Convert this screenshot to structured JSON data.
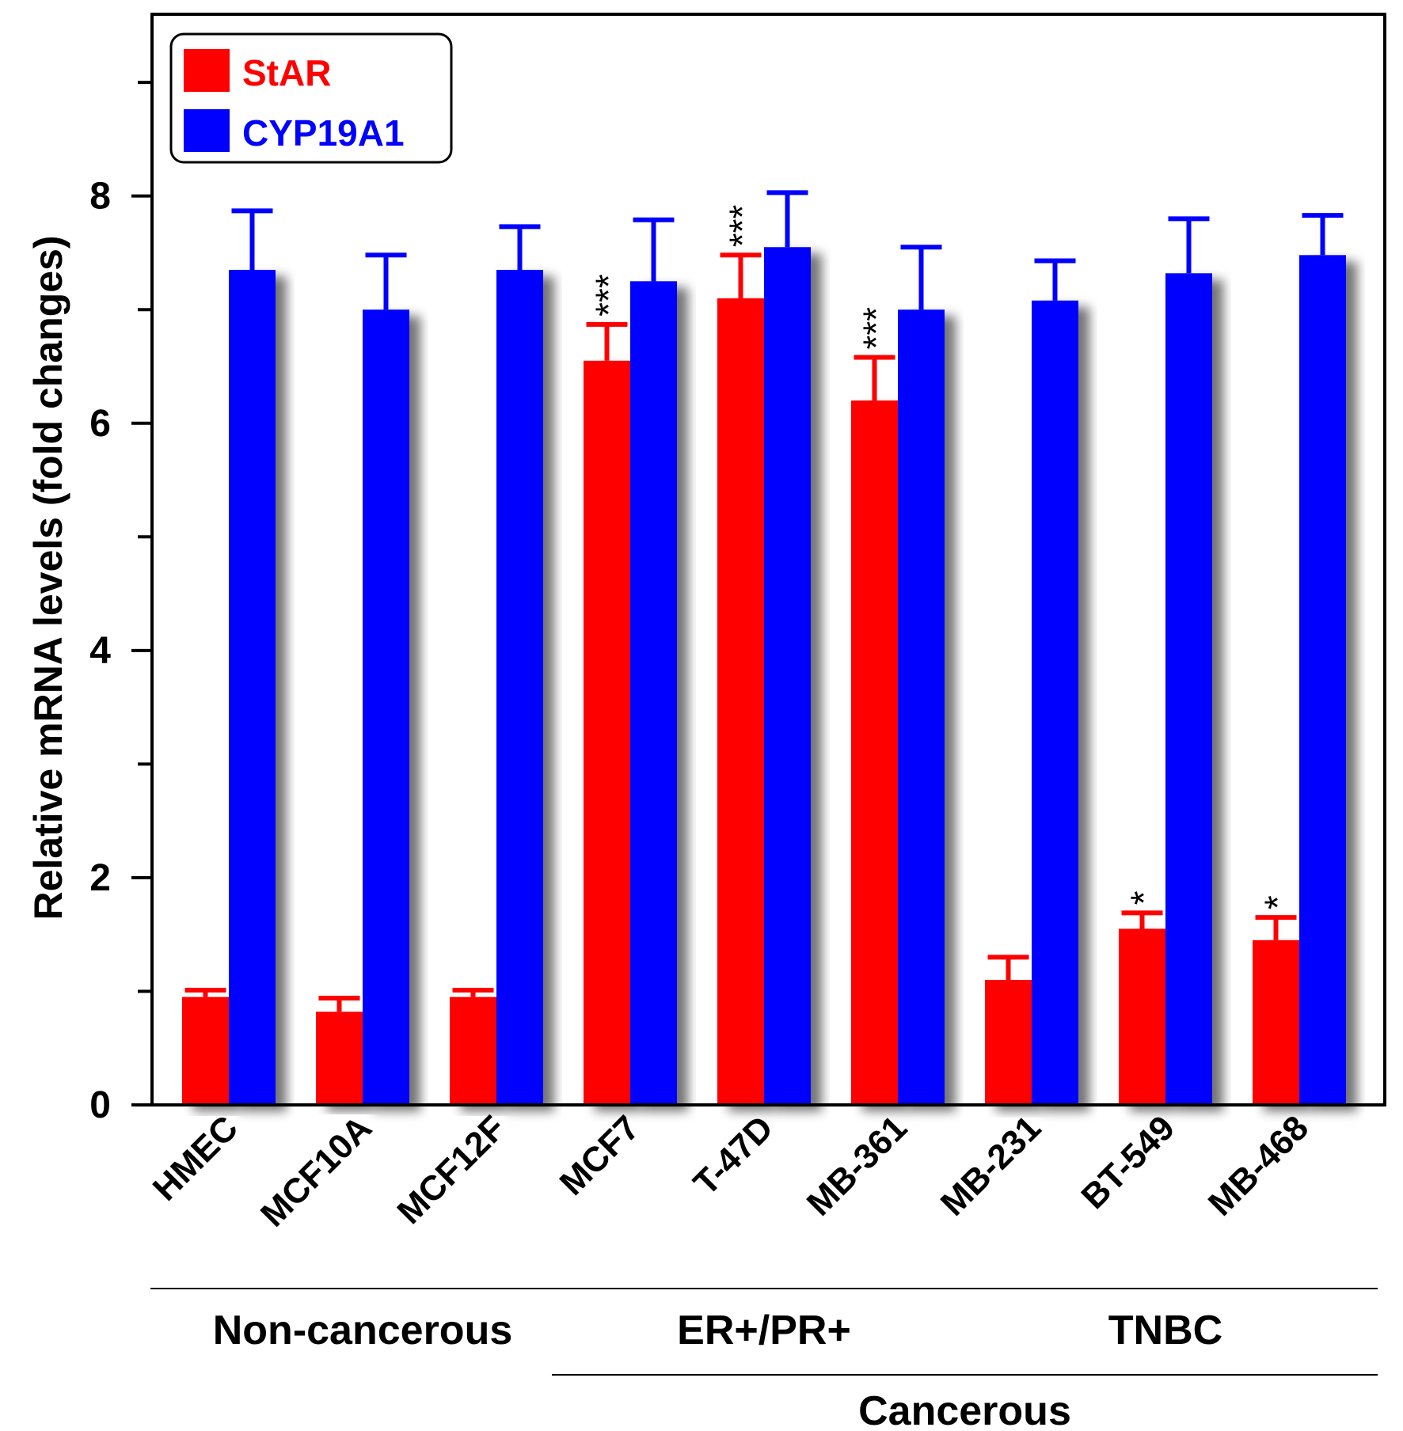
{
  "chart_data": {
    "type": "bar",
    "ylabel": "Relative mRNA levels (fold changes)",
    "ylim": [
      0,
      9.6
    ],
    "yticks": [
      0,
      2,
      4,
      6,
      8
    ],
    "minor_ticks": [
      1,
      3,
      5,
      7,
      9
    ],
    "categories": [
      "HMEC",
      "MCF10A",
      "MCF12F",
      "MCF7",
      "T-47D",
      "MB-361",
      "MB-231",
      "BT-549",
      "MB-468"
    ],
    "series": [
      {
        "name": "StAR",
        "color": "#ff0000",
        "values": [
          0.95,
          0.82,
          0.95,
          6.55,
          7.1,
          6.2,
          1.1,
          1.55,
          1.45
        ],
        "errors": [
          0.06,
          0.12,
          0.06,
          0.32,
          0.38,
          0.38,
          0.2,
          0.14,
          0.2
        ],
        "significance": [
          "",
          "",
          "",
          "***",
          "***",
          "***",
          "",
          "*",
          "*"
        ]
      },
      {
        "name": "CYP19A1",
        "color": "#0000ff",
        "values": [
          7.35,
          7.0,
          7.35,
          7.25,
          7.55,
          7.0,
          7.08,
          7.32,
          7.48
        ],
        "errors": [
          0.52,
          0.48,
          0.38,
          0.54,
          0.48,
          0.55,
          0.35,
          0.48,
          0.35
        ],
        "significance": [
          "",
          "",
          "",
          "",
          "",
          "",
          "",
          "",
          ""
        ]
      }
    ],
    "groups": [
      {
        "label": "Non-cancerous",
        "from": 0,
        "to": 2
      },
      {
        "label": "ER+/PR+",
        "from": 3,
        "to": 5
      },
      {
        "label": "TNBC",
        "from": 6,
        "to": 8
      }
    ],
    "supergroups": [
      {
        "label": "Cancerous",
        "from": 3,
        "to": 8
      }
    ],
    "legend_position": "top-left"
  }
}
